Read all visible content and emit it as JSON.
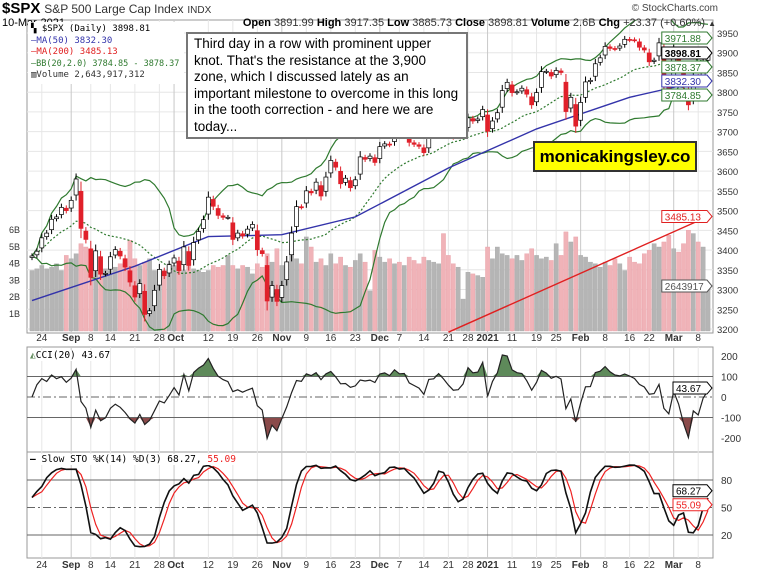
{
  "header": {
    "symbol": "$SPX",
    "name": "S&P 500 Large Cap Index",
    "exchange": "INDX",
    "date": "10-Mar-2021",
    "open_label": "Open",
    "open": "3891.99",
    "high_label": "High",
    "high": "3917.35",
    "low_label": "Low",
    "low": "3885.73",
    "close_label": "Close",
    "close": "3898.81",
    "volume_label": "Volume",
    "volume": "2.6B",
    "chg_label": "Chg",
    "chg": "+23.37 (+0.60%)",
    "chg_arrow": "▲",
    "brand": "© StockCharts.com"
  },
  "legend": {
    "price": "$SPX (Daily) 3898.81",
    "ma50": "MA(50) 3832.30",
    "ma200": "MA(200) 3485.13",
    "bb": "BB(20,2.0) 3784.85 - 3878.37",
    "volume": "Volume 2,643,917,312"
  },
  "annotation": "Third day in a row with prominent upper knot. That's the resistance at the 3,900 zone, which I discussed lately as an important milestone to overcome in this long in the tooth correction - and here we are today...",
  "watermark": "monicakingsley.co",
  "colors": {
    "up": "#ffffff",
    "down": "#e0202a",
    "ma50": "#3333aa",
    "ma200": "#e02020",
    "bb": "#2f7a2f",
    "volume_up": "#b5b5b5",
    "volume_down": "#f0b3b8",
    "cci_fill_pos": "#5e8a5a",
    "cci_fill_neg": "#8a4a4a",
    "sto_k": "#111111",
    "sto_d": "#ee2222"
  },
  "chart_data": {
    "type": "candlestick",
    "price_axis": {
      "min": 3200,
      "max": 3950,
      "ticks": [
        3200,
        3250,
        3300,
        3350,
        3400,
        3450,
        3500,
        3550,
        3600,
        3650,
        3700,
        3750,
        3800,
        3850,
        3900,
        3950
      ]
    },
    "volume_axis_labels": [
      "1B",
      "2B",
      "3B",
      "4B",
      "5B",
      "6B"
    ],
    "price_tags": {
      "bb_upper": "3971.88",
      "close": "3898.81",
      "bb_mid": "3878.37",
      "ma50": "3832.30",
      "bb_lower": "3784.85",
      "ma200": "3485.13",
      "volume": "2643917"
    },
    "candles_date_close_volumeB": [
      [
        "2020-08-20",
        3385,
        3.6
      ],
      [
        "2020-08-21",
        3397,
        3.7
      ],
      [
        "2020-08-24",
        3431,
        3.9
      ],
      [
        "2020-08-25",
        3443,
        3.7
      ],
      [
        "2020-08-26",
        3478,
        3.8
      ],
      [
        "2020-08-27",
        3484,
        4.0
      ],
      [
        "2020-08-28",
        3508,
        3.6
      ],
      [
        "2020-08-31",
        3500,
        4.5
      ],
      [
        "2020-09-01",
        3526,
        4.3
      ],
      [
        "2020-09-02",
        3580,
        4.6
      ],
      [
        "2020-09-03",
        3455,
        5.2
      ],
      [
        "2020-09-04",
        3427,
        5.0
      ],
      [
        "2020-09-08",
        3331,
        4.6
      ],
      [
        "2020-09-09",
        3398,
        3.8
      ],
      [
        "2020-09-10",
        3339,
        4.2
      ],
      [
        "2020-09-11",
        3341,
        3.7
      ],
      [
        "2020-09-14",
        3383,
        3.6
      ],
      [
        "2020-09-15",
        3401,
        3.8
      ],
      [
        "2020-09-16",
        3385,
        4.0
      ],
      [
        "2020-09-17",
        3357,
        4.1
      ],
      [
        "2020-09-18",
        3319,
        5.4
      ],
      [
        "2020-09-21",
        3281,
        4.3
      ],
      [
        "2020-09-22",
        3315,
        3.9
      ],
      [
        "2020-09-23",
        3237,
        4.1
      ],
      [
        "2020-09-24",
        3246,
        4.3
      ],
      [
        "2020-09-25",
        3298,
        3.6
      ],
      [
        "2020-09-28",
        3351,
        3.5
      ],
      [
        "2020-09-29",
        3335,
        3.3
      ],
      [
        "2020-09-30",
        3363,
        4.0
      ],
      [
        "2020-10-01",
        3380,
        3.9
      ],
      [
        "2020-10-02",
        3348,
        3.7
      ],
      [
        "2020-10-05",
        3408,
        3.6
      ],
      [
        "2020-10-06",
        3361,
        4.1
      ],
      [
        "2020-10-07",
        3419,
        3.7
      ],
      [
        "2020-10-08",
        3447,
        3.6
      ],
      [
        "2020-10-09",
        3477,
        3.5
      ],
      [
        "2020-10-12",
        3534,
        3.6
      ],
      [
        "2020-10-13",
        3511,
        3.9
      ],
      [
        "2020-10-14",
        3488,
        3.8
      ],
      [
        "2020-10-15",
        3483,
        3.9
      ],
      [
        "2020-10-16",
        3483,
        4.5
      ],
      [
        "2020-10-19",
        3427,
        3.9
      ],
      [
        "2020-10-20",
        3443,
        3.7
      ],
      [
        "2020-10-21",
        3436,
        3.9
      ],
      [
        "2020-10-22",
        3453,
        3.8
      ],
      [
        "2020-10-23",
        3465,
        3.4
      ],
      [
        "2020-10-26",
        3401,
        4.0
      ],
      [
        "2020-10-27",
        3391,
        3.8
      ],
      [
        "2020-10-28",
        3271,
        4.6
      ],
      [
        "2020-10-29",
        3310,
        4.1
      ],
      [
        "2020-10-30",
        3270,
        4.9
      ],
      [
        "2020-11-02",
        3310,
        3.9
      ],
      [
        "2020-11-03",
        3370,
        4.0
      ],
      [
        "2020-11-04",
        3443,
        4.6
      ],
      [
        "2020-11-05",
        3510,
        4.3
      ],
      [
        "2020-11-06",
        3509,
        4.0
      ],
      [
        "2020-11-09",
        3550,
        5.6
      ],
      [
        "2020-11-10",
        3545,
        5.0
      ],
      [
        "2020-11-11",
        3572,
        4.1
      ],
      [
        "2020-11-12",
        3537,
        4.3
      ],
      [
        "2020-11-13",
        3585,
        3.9
      ],
      [
        "2020-11-16",
        3627,
        4.6
      ],
      [
        "2020-11-17",
        3610,
        4.0
      ],
      [
        "2020-11-18",
        3568,
        4.4
      ],
      [
        "2020-11-19",
        3582,
        3.9
      ],
      [
        "2020-11-20",
        3558,
        3.8
      ],
      [
        "2020-11-23",
        3578,
        4.2
      ],
      [
        "2020-11-24",
        3636,
        4.6
      ],
      [
        "2020-11-25",
        3630,
        4.1
      ],
      [
        "2020-11-27",
        3638,
        2.4
      ],
      [
        "2020-11-30",
        3622,
        4.8
      ],
      [
        "2020-12-01",
        3662,
        4.4
      ],
      [
        "2020-12-02",
        3669,
        4.1
      ],
      [
        "2020-12-03",
        3667,
        4.3
      ],
      [
        "2020-12-04",
        3699,
        4.0
      ],
      [
        "2020-12-07",
        3692,
        4.1
      ],
      [
        "2020-12-08",
        3702,
        3.9
      ],
      [
        "2020-12-09",
        3673,
        4.4
      ],
      [
        "2020-12-10",
        3668,
        4.2
      ],
      [
        "2020-12-11",
        3663,
        4.0
      ],
      [
        "2020-12-14",
        3647,
        4.4
      ],
      [
        "2020-12-15",
        3695,
        4.2
      ],
      [
        "2020-12-16",
        3702,
        4.1
      ],
      [
        "2020-12-17",
        3722,
        4.0
      ],
      [
        "2020-12-18",
        3709,
        5.8
      ],
      [
        "2020-12-21",
        3695,
        4.5
      ],
      [
        "2020-12-22",
        3687,
        4.0
      ],
      [
        "2020-12-23",
        3690,
        3.8
      ],
      [
        "2020-12-24",
        3703,
        1.9
      ],
      [
        "2020-12-28",
        3735,
        3.5
      ],
      [
        "2020-12-29",
        3727,
        3.4
      ],
      [
        "2020-12-30",
        3732,
        3.3
      ],
      [
        "2020-12-31",
        3756,
        3.2
      ],
      [
        "2021-01-04",
        3701,
        5.0
      ],
      [
        "2021-01-05",
        3727,
        4.3
      ],
      [
        "2021-01-06",
        3748,
        5.0
      ],
      [
        "2021-01-07",
        3804,
        4.6
      ],
      [
        "2021-01-08",
        3825,
        4.5
      ],
      [
        "2021-01-11",
        3799,
        4.3
      ],
      [
        "2021-01-12",
        3801,
        4.5
      ],
      [
        "2021-01-13",
        3810,
        4.2
      ],
      [
        "2021-01-14",
        3795,
        4.6
      ],
      [
        "2021-01-15",
        3768,
        4.9
      ],
      [
        "2021-01-19",
        3799,
        4.5
      ],
      [
        "2021-01-20",
        3852,
        4.3
      ],
      [
        "2021-01-21",
        3853,
        4.4
      ],
      [
        "2021-01-22",
        3841,
        4.2
      ],
      [
        "2021-01-25",
        3855,
        5.2
      ],
      [
        "2021-01-26",
        3850,
        4.5
      ],
      [
        "2021-01-27",
        3751,
        5.9
      ],
      [
        "2021-01-28",
        3787,
        5.3
      ],
      [
        "2021-01-29",
        3714,
        5.6
      ],
      [
        "2021-02-01",
        3774,
        4.5
      ],
      [
        "2021-02-02",
        3826,
        4.4
      ],
      [
        "2021-02-03",
        3830,
        4.1
      ],
      [
        "2021-02-04",
        3872,
        4.0
      ],
      [
        "2021-02-05",
        3887,
        3.8
      ],
      [
        "2021-02-08",
        3916,
        4.1
      ],
      [
        "2021-02-09",
        3911,
        3.9
      ],
      [
        "2021-02-10",
        3910,
        4.3
      ],
      [
        "2021-02-11",
        3917,
        4.0
      ],
      [
        "2021-02-12",
        3934,
        3.6
      ],
      [
        "2021-02-16",
        3933,
        4.4
      ],
      [
        "2021-02-17",
        3932,
        4.1
      ],
      [
        "2021-02-18",
        3914,
        4.0
      ],
      [
        "2021-02-19",
        3907,
        4.6
      ],
      [
        "2021-02-22",
        3877,
        4.8
      ],
      [
        "2021-02-23",
        3881,
        5.2
      ],
      [
        "2021-02-24",
        3925,
        5.0
      ],
      [
        "2021-02-25",
        3829,
        5.3
      ],
      [
        "2021-02-26",
        3811,
        5.7
      ],
      [
        "2021-03-01",
        3901,
        4.9
      ],
      [
        "2021-03-02",
        3871,
        4.7
      ],
      [
        "2021-03-03",
        3820,
        5.2
      ],
      [
        "2021-03-04",
        3768,
        6.0
      ],
      [
        "2021-03-05",
        3842,
        5.8
      ],
      [
        "2021-03-08",
        3821,
        5.3
      ],
      [
        "2021-03-09",
        3875,
        5.0
      ],
      [
        "2021-03-10",
        3899,
        2.64
      ]
    ],
    "ma50": [
      [
        "2020-08-20",
        3272
      ],
      [
        "2020-09-21",
        3359
      ],
      [
        "2020-10-12",
        3434
      ],
      [
        "2020-11-02",
        3439
      ],
      [
        "2020-11-23",
        3484
      ],
      [
        "2020-12-21",
        3608
      ],
      [
        "2021-01-19",
        3707
      ],
      [
        "2021-02-16",
        3787
      ],
      [
        "2021-03-10",
        3832.3
      ]
    ],
    "ma200": [
      [
        "2020-12-21",
        3192
      ],
      [
        "2021-03-10",
        3485.13
      ]
    ],
    "x_ticks": [
      [
        "2020-08-24",
        "24",
        false
      ],
      [
        "2020-09-01",
        "Sep",
        true
      ],
      [
        "2020-09-08",
        "8",
        false
      ],
      [
        "2020-09-14",
        "14",
        false
      ],
      [
        "2020-09-21",
        "21",
        false
      ],
      [
        "2020-09-28",
        "28",
        false
      ],
      [
        "2020-10-01",
        "Oct",
        true
      ],
      [
        "2020-10-12",
        "12",
        false
      ],
      [
        "2020-10-19",
        "19",
        false
      ],
      [
        "2020-10-26",
        "26",
        false
      ],
      [
        "2020-11-02",
        "Nov",
        true
      ],
      [
        "2020-11-09",
        "9",
        false
      ],
      [
        "2020-11-16",
        "16",
        false
      ],
      [
        "2020-11-23",
        "23",
        false
      ],
      [
        "2020-12-01",
        "Dec",
        true
      ],
      [
        "2020-12-07",
        "7",
        false
      ],
      [
        "2020-12-14",
        "14",
        false
      ],
      [
        "2020-12-21",
        "21",
        false
      ],
      [
        "2020-12-28",
        "28",
        false
      ],
      [
        "2021-01-04",
        "2021",
        true
      ],
      [
        "2021-01-11",
        "11",
        false
      ],
      [
        "2021-01-19",
        "19",
        false
      ],
      [
        "2021-01-25",
        "25",
        false
      ],
      [
        "2021-02-01",
        "Feb",
        true
      ],
      [
        "2021-02-08",
        "8",
        false
      ],
      [
        "2021-02-16",
        "16",
        false
      ],
      [
        "2021-02-22",
        "22",
        false
      ],
      [
        "2021-03-01",
        "Mar",
        true
      ],
      [
        "2021-03-08",
        "8",
        false
      ]
    ],
    "cci": {
      "label": "CCI(20) 43.67",
      "last": "43.67",
      "ticks": [
        "200",
        "100",
        "0",
        "-100",
        "-200"
      ]
    },
    "sto": {
      "label": "Slow STO %K(14) %D(3) 68.27,",
      "label_d": "55.09",
      "k_last": "68.27",
      "d_last": "55.09",
      "ticks": [
        "80",
        "50",
        "20"
      ]
    }
  }
}
